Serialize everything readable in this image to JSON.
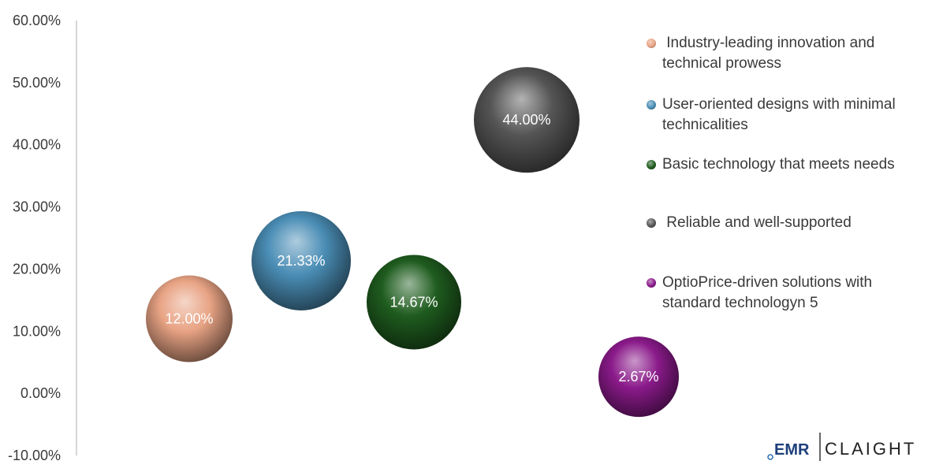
{
  "chart_data": {
    "type": "bubble",
    "y_axis": {
      "ticks": [
        "60.00%",
        "50.00%",
        "40.00%",
        "30.00%",
        "20.00%",
        "10.00%",
        "0.00%",
        "-10.00%"
      ],
      "ylim": [
        -10,
        60
      ],
      "format": "percent"
    },
    "x_axis": {
      "visible": false
    },
    "grid": false,
    "legend_position": "right",
    "series": [
      {
        "name": " Industry-leading innovation and technical prowess",
        "y": 12.0,
        "label": "12.00%",
        "color": "#e8a384"
      },
      {
        "name": "User-oriented designs with minimal technicalities",
        "y": 21.33,
        "label": "21.33%",
        "color": "#4a8db5"
      },
      {
        "name": "Basic technology that meets needs",
        "y": 14.67,
        "label": "14.67%",
        "color": "#1f5c1f"
      },
      {
        "name": " Reliable and well-supported",
        "y": 44.0,
        "label": "44.00%",
        "color": "#555555"
      },
      {
        "name": "OptioPrice-driven solutions with standard technologyn 5",
        "y": 2.67,
        "label": "2.67%",
        "color": "#8a1a8a"
      }
    ]
  },
  "logo": {
    "left_text": "EMR",
    "right_text": "CLAIGHT"
  }
}
